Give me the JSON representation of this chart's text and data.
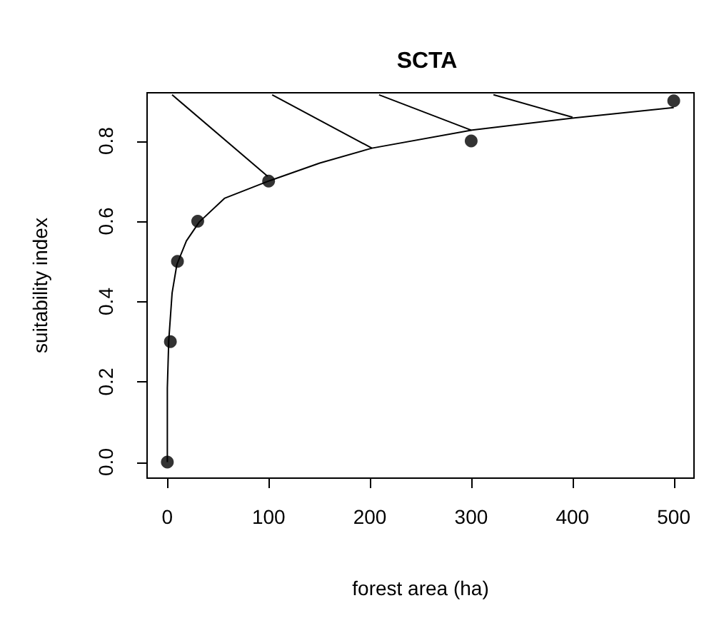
{
  "chart_data": {
    "type": "scatter",
    "title": "SCTA",
    "xlabel": "forest area (ha)",
    "ylabel": "suitability index",
    "xlim": [
      -20,
      520
    ],
    "ylim": [
      -0.04,
      0.92
    ],
    "xticks": [
      0,
      100,
      200,
      300,
      400,
      500
    ],
    "yticks": [
      {
        "value": 0,
        "label": "0.0"
      },
      0.2,
      0.4,
      0.6,
      0.8
    ],
    "series": [
      {
        "color": "#000000",
        "marker": "circle",
        "x": [
          0,
          3,
          10,
          30,
          100,
          300,
          500
        ],
        "values": [
          0,
          0.3,
          0.5,
          0.6,
          0.7,
          0.8,
          0.9
        ]
      },
      {
        "type": "line",
        "color": "#000000",
        "marker": "none",
        "line_style": "solid",
        "x": [
          0,
          0,
          1.4,
          4.7,
          9.4,
          18.8,
          31.5,
          56.4,
          101,
          150.5,
          202,
          301,
          400,
          500
        ],
        "values": [
          0,
          0.185,
          0.303,
          0.421,
          0.492,
          0.551,
          0.598,
          0.657,
          0.701,
          0.745,
          0.782,
          0.827,
          0.857,
          0.883
        ]
      },
      {
        "type": "line",
        "color": "#000000",
        "marker": "none",
        "line_style": "solid",
        "x": [
          4.7,
          99
        ],
        "values": [
          0.915,
          0.712
        ]
      },
      {
        "type": "line",
        "color": "#000000",
        "marker": "none",
        "line_style": "solid",
        "x": [
          103.5,
          202
        ],
        "values": [
          0.915,
          0.782
        ]
      },
      {
        "type": "line",
        "color": "#000000",
        "marker": "none",
        "line_style": "solid",
        "x": [
          209,
          300
        ],
        "values": [
          0.915,
          0.827
        ]
      },
      {
        "type": "line",
        "color": "#000000",
        "marker": "none",
        "line_style": "solid",
        "x": [
          322,
          400
        ],
        "values": [
          0.915,
          0.859
        ]
      }
    ]
  }
}
